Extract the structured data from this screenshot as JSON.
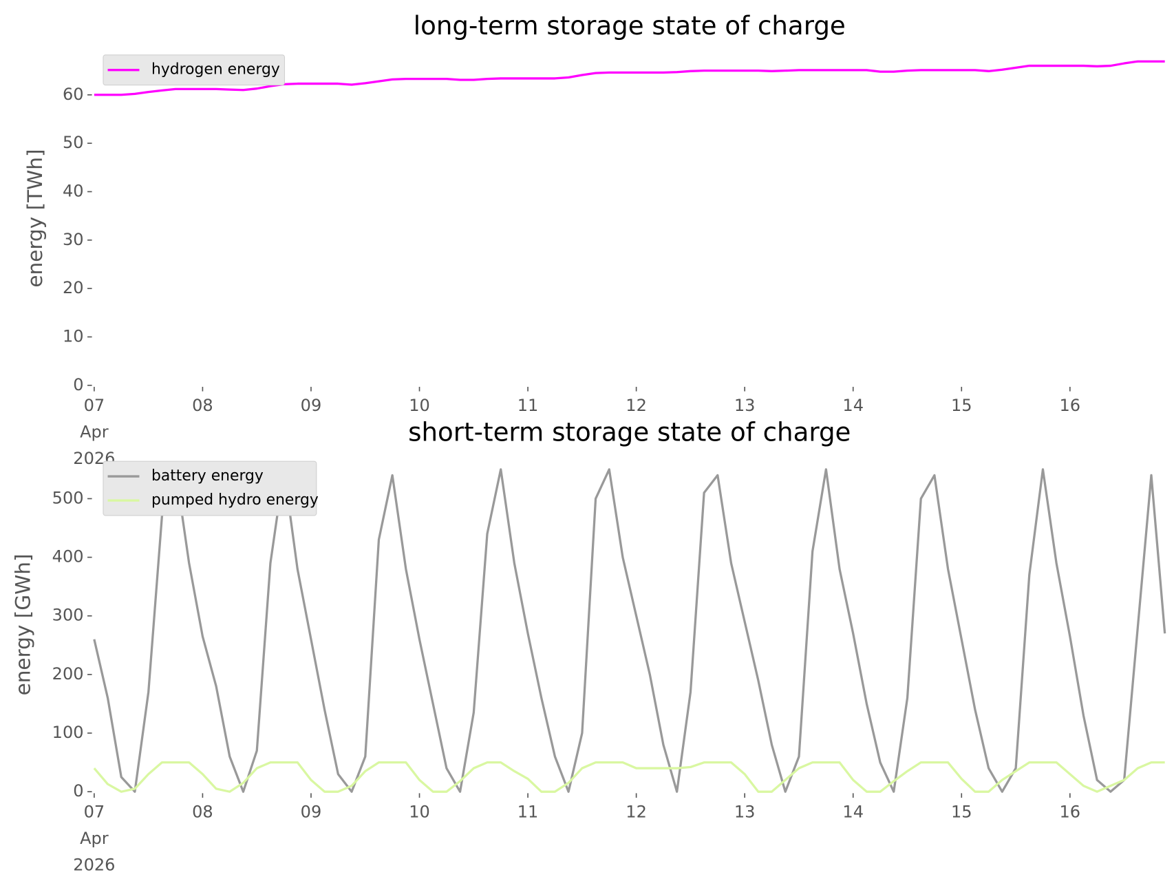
{
  "chart_data": [
    {
      "type": "line",
      "title": "long-term storage state of charge",
      "y_label": "energy [TWh]",
      "x": [
        "2026-04-07T00:00",
        "2026-04-07T03:00",
        "2026-04-07T06:00",
        "2026-04-07T09:00",
        "2026-04-07T12:00",
        "2026-04-07T15:00",
        "2026-04-07T18:00",
        "2026-04-07T21:00",
        "2026-04-08T00:00",
        "2026-04-08T03:00",
        "2026-04-08T06:00",
        "2026-04-08T09:00",
        "2026-04-08T12:00",
        "2026-04-08T15:00",
        "2026-04-08T18:00",
        "2026-04-08T21:00",
        "2026-04-09T00:00",
        "2026-04-09T03:00",
        "2026-04-09T06:00",
        "2026-04-09T09:00",
        "2026-04-09T12:00",
        "2026-04-09T15:00",
        "2026-04-09T18:00",
        "2026-04-09T21:00",
        "2026-04-10T00:00",
        "2026-04-10T03:00",
        "2026-04-10T06:00",
        "2026-04-10T09:00",
        "2026-04-10T12:00",
        "2026-04-10T15:00",
        "2026-04-10T18:00",
        "2026-04-10T21:00",
        "2026-04-11T00:00",
        "2026-04-11T03:00",
        "2026-04-11T06:00",
        "2026-04-11T09:00",
        "2026-04-11T12:00",
        "2026-04-11T15:00",
        "2026-04-11T18:00",
        "2026-04-11T21:00",
        "2026-04-12T00:00",
        "2026-04-12T03:00",
        "2026-04-12T06:00",
        "2026-04-12T09:00",
        "2026-04-12T12:00",
        "2026-04-12T15:00",
        "2026-04-12T18:00",
        "2026-04-12T21:00",
        "2026-04-13T00:00",
        "2026-04-13T03:00",
        "2026-04-13T06:00",
        "2026-04-13T09:00",
        "2026-04-13T12:00",
        "2026-04-13T15:00",
        "2026-04-13T18:00",
        "2026-04-13T21:00",
        "2026-04-14T00:00",
        "2026-04-14T03:00",
        "2026-04-14T06:00",
        "2026-04-14T09:00",
        "2026-04-14T12:00",
        "2026-04-14T15:00",
        "2026-04-14T18:00",
        "2026-04-14T21:00",
        "2026-04-15T00:00",
        "2026-04-15T03:00",
        "2026-04-15T06:00",
        "2026-04-15T09:00",
        "2026-04-15T12:00",
        "2026-04-15T15:00",
        "2026-04-15T18:00",
        "2026-04-15T21:00",
        "2026-04-16T00:00",
        "2026-04-16T03:00",
        "2026-04-16T06:00",
        "2026-04-16T09:00",
        "2026-04-16T12:00",
        "2026-04-16T15:00",
        "2026-04-16T18:00",
        "2026-04-16T21:00"
      ],
      "series": [
        {
          "name": "hydrogen energy",
          "color": "#ff00ff",
          "values": [
            60,
            60,
            60,
            60.2,
            60.6,
            60.9,
            61.2,
            61.2,
            61.2,
            61.2,
            61.1,
            61.0,
            61.3,
            61.8,
            62.2,
            62.3,
            62.3,
            62.3,
            62.3,
            62.1,
            62.4,
            62.8,
            63.2,
            63.3,
            63.3,
            63.3,
            63.3,
            63.1,
            63.1,
            63.3,
            63.4,
            63.4,
            63.4,
            63.4,
            63.4,
            63.6,
            64.1,
            64.5,
            64.6,
            64.6,
            64.6,
            64.6,
            64.6,
            64.7,
            64.9,
            65.0,
            65.0,
            65.0,
            65.0,
            65.0,
            64.9,
            65.0,
            65.1,
            65.1,
            65.1,
            65.1,
            65.1,
            65.1,
            64.8,
            64.8,
            65.0,
            65.1,
            65.1,
            65.1,
            65.1,
            65.1,
            64.9,
            65.2,
            65.6,
            66.0,
            66.0,
            66.0,
            66.0,
            66.0,
            65.9,
            66.0,
            66.5,
            66.9,
            66.9,
            66.9
          ]
        }
      ],
      "xlim": [
        "2026-04-07T00:00",
        "2026-04-16T21:00"
      ],
      "xticks": [
        {
          "value": "2026-04-07T00:00",
          "label": "07\nApr\n2026"
        },
        {
          "value": "2026-04-08T00:00",
          "label": "08"
        },
        {
          "value": "2026-04-09T00:00",
          "label": "09"
        },
        {
          "value": "2026-04-10T00:00",
          "label": "10"
        },
        {
          "value": "2026-04-11T00:00",
          "label": "11"
        },
        {
          "value": "2026-04-12T00:00",
          "label": "12"
        },
        {
          "value": "2026-04-13T00:00",
          "label": "13"
        },
        {
          "value": "2026-04-14T00:00",
          "label": "14"
        },
        {
          "value": "2026-04-15T00:00",
          "label": "15"
        },
        {
          "value": "2026-04-16T00:00",
          "label": "16"
        }
      ],
      "ylim": [
        0,
        68.4
      ],
      "yticks": [
        0,
        10,
        20,
        30,
        40,
        50,
        60
      ],
      "legend": "upper left",
      "grid": false
    },
    {
      "type": "line",
      "title": "short-term storage state of charge",
      "y_label": "energy [GWh]",
      "x": [
        "2026-04-07T00:00",
        "2026-04-07T03:00",
        "2026-04-07T06:00",
        "2026-04-07T09:00",
        "2026-04-07T12:00",
        "2026-04-07T15:00",
        "2026-04-07T18:00",
        "2026-04-07T21:00",
        "2026-04-08T00:00",
        "2026-04-08T03:00",
        "2026-04-08T06:00",
        "2026-04-08T09:00",
        "2026-04-08T12:00",
        "2026-04-08T15:00",
        "2026-04-08T18:00",
        "2026-04-08T21:00",
        "2026-04-09T00:00",
        "2026-04-09T03:00",
        "2026-04-09T06:00",
        "2026-04-09T09:00",
        "2026-04-09T12:00",
        "2026-04-09T15:00",
        "2026-04-09T18:00",
        "2026-04-09T21:00",
        "2026-04-10T00:00",
        "2026-04-10T03:00",
        "2026-04-10T06:00",
        "2026-04-10T09:00",
        "2026-04-10T12:00",
        "2026-04-10T15:00",
        "2026-04-10T18:00",
        "2026-04-10T21:00",
        "2026-04-11T00:00",
        "2026-04-11T03:00",
        "2026-04-11T06:00",
        "2026-04-11T09:00",
        "2026-04-11T12:00",
        "2026-04-11T15:00",
        "2026-04-11T18:00",
        "2026-04-11T21:00",
        "2026-04-12T00:00",
        "2026-04-12T03:00",
        "2026-04-12T06:00",
        "2026-04-12T09:00",
        "2026-04-12T12:00",
        "2026-04-12T15:00",
        "2026-04-12T18:00",
        "2026-04-12T21:00",
        "2026-04-13T00:00",
        "2026-04-13T03:00",
        "2026-04-13T06:00",
        "2026-04-13T09:00",
        "2026-04-13T12:00",
        "2026-04-13T15:00",
        "2026-04-13T18:00",
        "2026-04-13T21:00",
        "2026-04-14T00:00",
        "2026-04-14T03:00",
        "2026-04-14T06:00",
        "2026-04-14T09:00",
        "2026-04-14T12:00",
        "2026-04-14T15:00",
        "2026-04-14T18:00",
        "2026-04-14T21:00",
        "2026-04-15T00:00",
        "2026-04-15T03:00",
        "2026-04-15T06:00",
        "2026-04-15T09:00",
        "2026-04-15T12:00",
        "2026-04-15T15:00",
        "2026-04-15T18:00",
        "2026-04-15T21:00",
        "2026-04-16T00:00",
        "2026-04-16T03:00",
        "2026-04-16T06:00",
        "2026-04-16T09:00",
        "2026-04-16T12:00",
        "2026-04-16T15:00",
        "2026-04-16T18:00",
        "2026-04-16T21:00"
      ],
      "series": [
        {
          "name": "battery energy",
          "color": "#999999",
          "values": [
            260,
            160,
            25,
            0,
            170,
            470,
            550,
            390,
            265,
            180,
            60,
            0,
            70,
            390,
            550,
            380,
            260,
            140,
            30,
            0,
            60,
            430,
            540,
            380,
            260,
            150,
            40,
            0,
            135,
            440,
            550,
            390,
            270,
            160,
            60,
            0,
            100,
            500,
            550,
            400,
            300,
            200,
            80,
            0,
            170,
            510,
            540,
            390,
            290,
            190,
            80,
            0,
            60,
            410,
            550,
            380,
            270,
            150,
            50,
            0,
            160,
            500,
            540,
            380,
            260,
            140,
            40,
            0,
            40,
            370,
            550,
            390,
            265,
            130,
            20,
            0,
            20,
            280,
            540,
            270
          ]
        },
        {
          "name": "pumped hydro energy",
          "color": "#d9f7a1",
          "values": [
            40,
            13,
            0,
            5,
            30,
            50,
            50,
            50,
            30,
            5,
            0,
            15,
            40,
            50,
            50,
            50,
            20,
            0,
            0,
            10,
            35,
            50,
            50,
            50,
            20,
            0,
            0,
            18,
            40,
            50,
            50,
            35,
            22,
            0,
            0,
            15,
            40,
            50,
            50,
            50,
            40,
            40,
            40,
            40,
            42,
            50,
            50,
            50,
            30,
            0,
            0,
            20,
            40,
            50,
            50,
            50,
            20,
            0,
            0,
            18,
            35,
            50,
            50,
            50,
            22,
            0,
            0,
            20,
            35,
            50,
            50,
            50,
            30,
            10,
            0,
            10,
            20,
            40,
            50,
            50
          ]
        }
      ],
      "xlim": [
        "2026-04-07T00:00",
        "2026-04-16T21:00"
      ],
      "xticks": [
        {
          "value": "2026-04-07T00:00",
          "label": "07\nApr\n2026"
        },
        {
          "value": "2026-04-08T00:00",
          "label": "08"
        },
        {
          "value": "2026-04-09T00:00",
          "label": "09"
        },
        {
          "value": "2026-04-10T00:00",
          "label": "10"
        },
        {
          "value": "2026-04-11T00:00",
          "label": "11"
        },
        {
          "value": "2026-04-12T00:00",
          "label": "12"
        },
        {
          "value": "2026-04-13T00:00",
          "label": "13"
        },
        {
          "value": "2026-04-14T00:00",
          "label": "14"
        },
        {
          "value": "2026-04-15T00:00",
          "label": "15"
        },
        {
          "value": "2026-04-16T00:00",
          "label": "16"
        }
      ],
      "ylim": [
        0,
        565
      ],
      "yticks": [
        0,
        100,
        200,
        300,
        400,
        500
      ],
      "legend": "upper left",
      "grid": false
    }
  ]
}
